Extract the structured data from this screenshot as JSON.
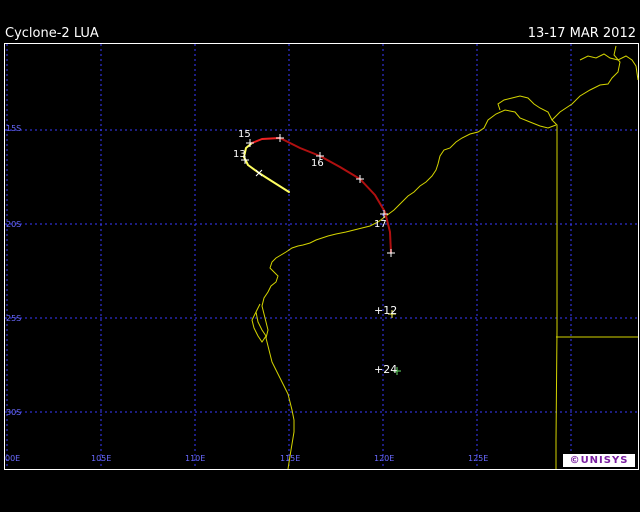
{
  "header": {
    "title": "Cyclone-2 LUA",
    "dates": "13-17 MAR 2012"
  },
  "grid": {
    "lat_labels": [
      "15S",
      "20S",
      "25S",
      "30S"
    ],
    "lon_labels": [
      "00E",
      "105E",
      "110E",
      "115E",
      "120E",
      "125E"
    ]
  },
  "track": {
    "day_labels": [
      "15",
      "13",
      "16",
      "17"
    ],
    "forecast_labels": [
      "+12",
      "+24"
    ]
  },
  "colors": {
    "background": "#000000",
    "grid": "#3a3aff",
    "coast": "#d4d400",
    "track_early": "#ffff60",
    "track_late": "#cc1111"
  },
  "logo": {
    "text": "UNISYS"
  }
}
